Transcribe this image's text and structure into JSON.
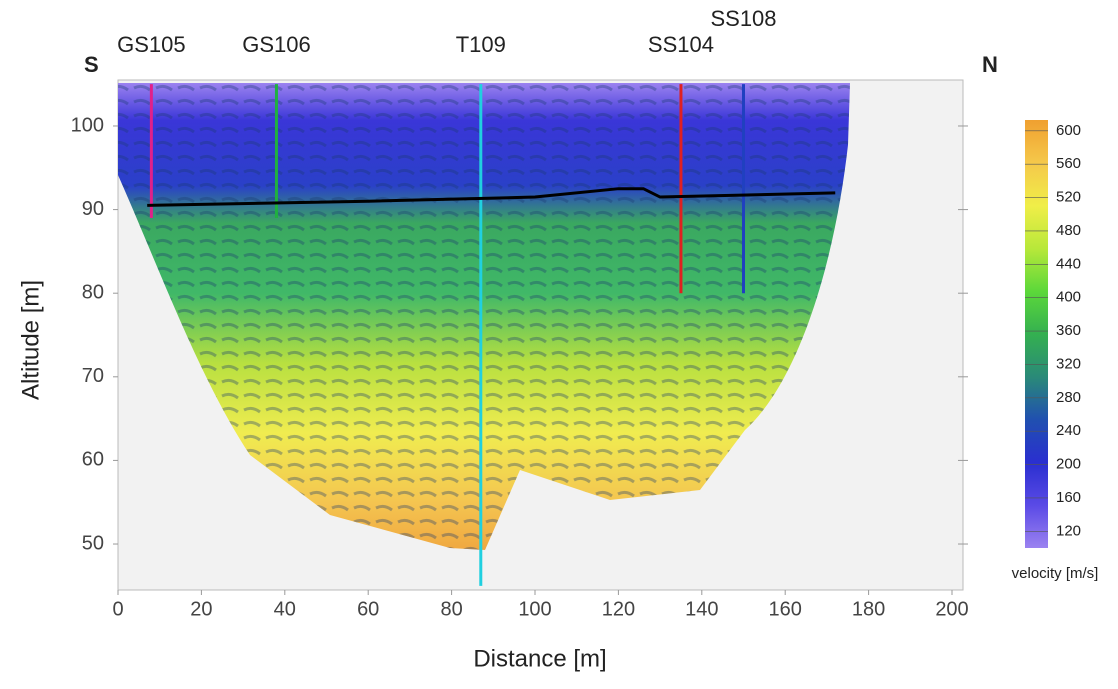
{
  "chart_data": {
    "type": "tomogram",
    "xlabel": "Distance [m]",
    "ylabel": "Altitude [m]",
    "xlim": [
      0,
      200
    ],
    "ylim": [
      44.5,
      105.5
    ],
    "xticks": [
      0,
      20,
      40,
      60,
      80,
      100,
      120,
      140,
      160,
      180,
      200
    ],
    "yticks": [
      50,
      60,
      70,
      80,
      90,
      100
    ],
    "side_labels": [
      "S",
      "N"
    ],
    "colorbar": {
      "label": "velocity [m/s]",
      "lim": [
        100,
        613
      ],
      "ticks": [
        120,
        160,
        200,
        240,
        280,
        320,
        360,
        400,
        440,
        480,
        520,
        560,
        600
      ],
      "colors": [
        "#9b82f0",
        "#5a4ae6",
        "#2a2fd0",
        "#2050b0",
        "#2a8a78",
        "#34b050",
        "#5cd83a",
        "#b8e83a",
        "#f0ee48",
        "#f5c84a",
        "#f0a030"
      ]
    },
    "interface": {
      "color": "#000000",
      "x": [
        7,
        60,
        100,
        120,
        126,
        130,
        172
      ],
      "y": [
        90.5,
        91,
        91.5,
        92.5,
        92.5,
        91.5,
        92
      ]
    },
    "boreholes": [
      {
        "label": "GS105",
        "x": 8,
        "top": 105,
        "bottom": 89,
        "color": "#e0208a"
      },
      {
        "label": "GS106",
        "x": 38,
        "top": 105,
        "bottom": 89,
        "color": "#20b040"
      },
      {
        "label": "T109",
        "x": 87,
        "top": 105,
        "bottom": 45,
        "color": "#20d0e0"
      },
      {
        "label": "SS104",
        "x": 135,
        "top": 105,
        "bottom": 80,
        "color": "#e02020"
      },
      {
        "label": "SS108",
        "x": 150,
        "top": 105,
        "bottom": 80,
        "color": "#2040c0"
      }
    ]
  }
}
